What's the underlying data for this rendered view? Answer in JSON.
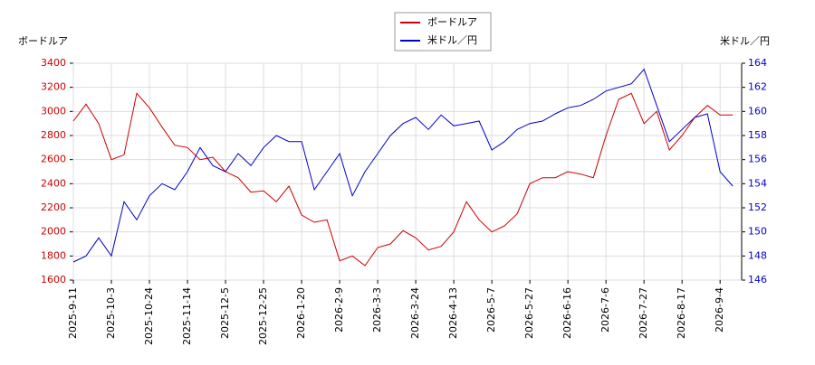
{
  "chart_data": {
    "type": "line",
    "y_label": "ボードルア",
    "y2_label": "米ドル／円",
    "categories": [
      "2025-9-11",
      null,
      null,
      "2025-10-3",
      null,
      null,
      "2025-10-24",
      null,
      null,
      "2025-11-14",
      null,
      null,
      "2025-12-5",
      null,
      null,
      "2025-12-25",
      null,
      null,
      "2026-1-20",
      null,
      null,
      "2026-2-9",
      null,
      null,
      "2026-3-3",
      null,
      null,
      "2026-3-24",
      null,
      null,
      "2026-4-13",
      null,
      null,
      "2026-5-7",
      null,
      null,
      "2026-5-27",
      null,
      null,
      "2026-6-16",
      null,
      null,
      "2026-7-6",
      null,
      null,
      "2026-7-27",
      null,
      null,
      "2026-8-17",
      null,
      null,
      "2026-9-4",
      null
    ],
    "series": [
      {
        "name": "ボードルア",
        "color": "#cc0000",
        "axis": "y",
        "values": [
          2920,
          3060,
          2900,
          2600,
          2640,
          3150,
          3030,
          2870,
          2720,
          2700,
          2600,
          2620,
          2500,
          2450,
          2330,
          2340,
          2250,
          2380,
          2140,
          2080,
          2100,
          1760,
          1800,
          1720,
          1870,
          1900,
          2010,
          1950,
          1850,
          1880,
          2000,
          2250,
          2100,
          2000,
          2050,
          2150,
          2400,
          2450,
          2450,
          2500,
          2480,
          2450,
          2800,
          3100,
          3150,
          2900,
          3000,
          2680,
          2800,
          2950,
          3050,
          2970,
          2970
        ]
      },
      {
        "name": "米ドル／円",
        "color": "#0000cc",
        "axis": "y2",
        "values": [
          147.5,
          148,
          149.5,
          148,
          152.5,
          151,
          153,
          154,
          153.5,
          155,
          157,
          155.5,
          155,
          156.5,
          155.5,
          157,
          158,
          157.5,
          157.5,
          153.5,
          155,
          156.5,
          153,
          155,
          156.5,
          158,
          159,
          159.5,
          158.5,
          159.7,
          158.8,
          159,
          159.2,
          156.8,
          157.5,
          158.5,
          159,
          159.2,
          159.8,
          160.3,
          160.5,
          161,
          161.7,
          162,
          162.3,
          163.5,
          160.5,
          157.5,
          158.5,
          159.5,
          159.8,
          155,
          153.8
        ]
      }
    ],
    "ylim": [
      1600,
      3400
    ],
    "yticks": [
      1600,
      1800,
      2000,
      2200,
      2400,
      2600,
      2800,
      3000,
      3200,
      3400
    ],
    "y2lim": [
      146,
      164
    ],
    "y2ticks": [
      146,
      148,
      150,
      152,
      154,
      156,
      158,
      160,
      162,
      164
    ],
    "grid": true
  }
}
